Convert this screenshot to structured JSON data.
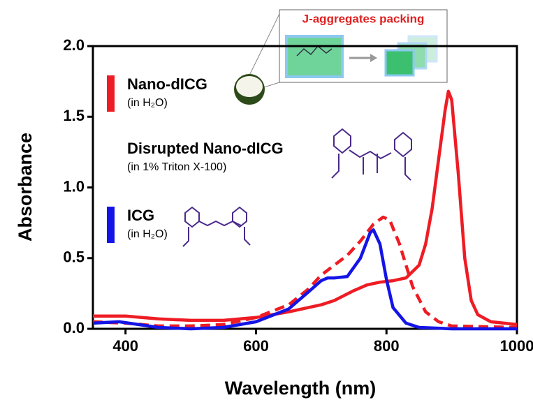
{
  "chart_data": {
    "type": "line",
    "xlabel": "Wavelength (nm)",
    "ylabel": "Absorbance",
    "xlim": [
      350,
      1000
    ],
    "ylim": [
      0,
      2
    ],
    "xticks": [
      400,
      600,
      800,
      1000
    ],
    "yticks": [
      {
        "value": 0,
        "label": "0.0"
      },
      {
        "value": 0.5,
        "label": "0.5"
      },
      {
        "value": 1,
        "label": "1.0"
      },
      {
        "value": 1.5,
        "label": "1.5"
      },
      {
        "value": 2,
        "label": "2.0"
      }
    ],
    "annotation": "J-aggregates packing",
    "series": [
      {
        "name": "Nano-dICG",
        "note": "(in H₂O)",
        "color": "#ee1c24",
        "dashed": false,
        "x": [
          350,
          400,
          450,
          500,
          550,
          600,
          650,
          700,
          720,
          750,
          770,
          790,
          810,
          830,
          850,
          860,
          870,
          880,
          890,
          895,
          900,
          910,
          920,
          930,
          940,
          960,
          1000
        ],
        "values": [
          0.09,
          0.09,
          0.07,
          0.06,
          0.06,
          0.08,
          0.12,
          0.17,
          0.2,
          0.27,
          0.31,
          0.33,
          0.34,
          0.36,
          0.45,
          0.6,
          0.85,
          1.2,
          1.55,
          1.68,
          1.62,
          1.1,
          0.5,
          0.2,
          0.1,
          0.05,
          0.03
        ]
      },
      {
        "name": "Disrupted Nano-dICG",
        "note": "(in 1% Triton X-100)",
        "color": "#ee1c24",
        "dashed": true,
        "x": [
          350,
          400,
          450,
          500,
          550,
          600,
          650,
          680,
          700,
          720,
          740,
          760,
          780,
          795,
          805,
          820,
          840,
          860,
          880,
          900,
          1000
        ],
        "values": [
          0.05,
          0.04,
          0.02,
          0.02,
          0.03,
          0.08,
          0.17,
          0.28,
          0.38,
          0.45,
          0.52,
          0.62,
          0.74,
          0.79,
          0.77,
          0.6,
          0.3,
          0.12,
          0.05,
          0.02,
          0.01
        ]
      },
      {
        "name": "ICG",
        "note": "(in H₂O)",
        "color": "#1414e6",
        "dashed": false,
        "x": [
          350,
          390,
          420,
          450,
          500,
          550,
          600,
          650,
          680,
          700,
          710,
          720,
          740,
          760,
          775,
          780,
          790,
          800,
          810,
          830,
          850,
          900,
          1000
        ],
        "values": [
          0.04,
          0.05,
          0.03,
          0.01,
          0,
          0.01,
          0.05,
          0.14,
          0.26,
          0.34,
          0.36,
          0.36,
          0.37,
          0.5,
          0.68,
          0.7,
          0.6,
          0.35,
          0.15,
          0.04,
          0.01,
          0,
          0
        ]
      }
    ]
  }
}
